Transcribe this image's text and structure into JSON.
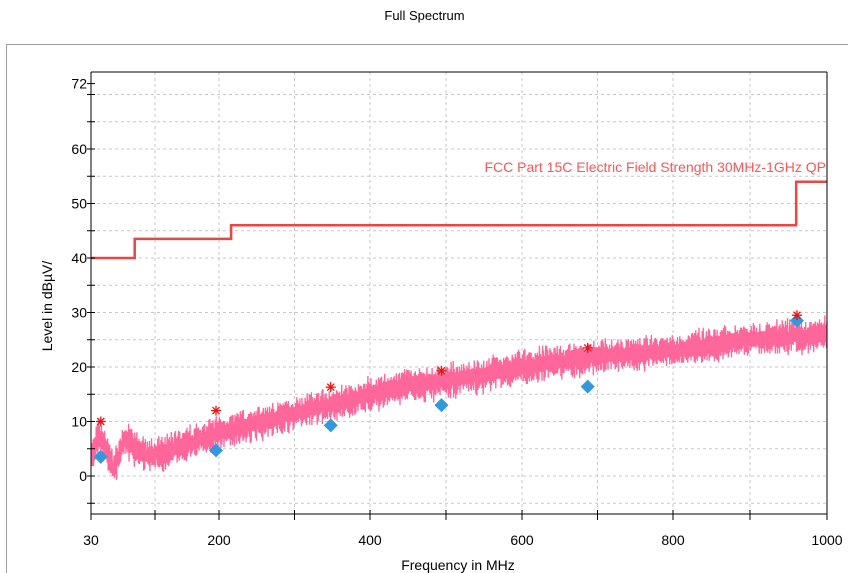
{
  "chart_data": {
    "type": "line",
    "title": "Full Spectrum",
    "xlabel": "Frequency in MHz",
    "ylabel": "Level in dBµV/",
    "x_ticks": [
      30,
      200,
      400,
      600,
      800,
      1000
    ],
    "y_ticks": [
      0,
      10,
      20,
      30,
      40,
      50,
      60,
      72
    ],
    "xlim": [
      30,
      1000
    ],
    "ylim": [
      -8,
      73
    ],
    "grid": true,
    "colors": {
      "spectrum": "#ff6699",
      "limit": "#ee4444",
      "peak": "#ee1111",
      "qp": "#3399dd"
    },
    "series": [
      {
        "kind": "spectrum",
        "x": [
          30,
          40,
          50,
          60,
          75,
          90,
          105,
          120,
          140,
          160,
          180,
          200,
          230,
          260,
          300,
          330,
          360,
          400,
          450,
          500,
          550,
          600,
          650,
          700,
          750,
          800,
          850,
          900,
          950,
          1000
        ],
        "y": [
          3,
          7,
          5,
          1,
          7,
          5,
          3.5,
          4,
          5,
          6,
          7,
          8,
          9,
          10,
          11.5,
          12.5,
          13.5,
          15,
          16.5,
          17.5,
          18.5,
          20,
          21,
          22,
          22.5,
          23,
          24,
          25,
          25.5,
          26
        ]
      },
      {
        "name": "FCC Part 15C Electric Field Strength 30MHz-1GHz QP",
        "kind": "limit",
        "x": [
          30,
          88,
          88,
          216,
          216,
          960,
          960,
          1000
        ],
        "y": [
          40,
          40,
          43.5,
          43.5,
          46,
          46,
          54,
          54
        ]
      },
      {
        "kind": "peak",
        "x": [
          43,
          196,
          348,
          494,
          687,
          961
        ],
        "y": [
          10,
          12,
          16.3,
          19.3,
          23.5,
          29.5
        ]
      },
      {
        "kind": "qp",
        "x": [
          43,
          196,
          348,
          494,
          687,
          961
        ],
        "y": [
          3.5,
          4.7,
          9.3,
          13,
          16.4,
          28.5
        ]
      }
    ]
  }
}
